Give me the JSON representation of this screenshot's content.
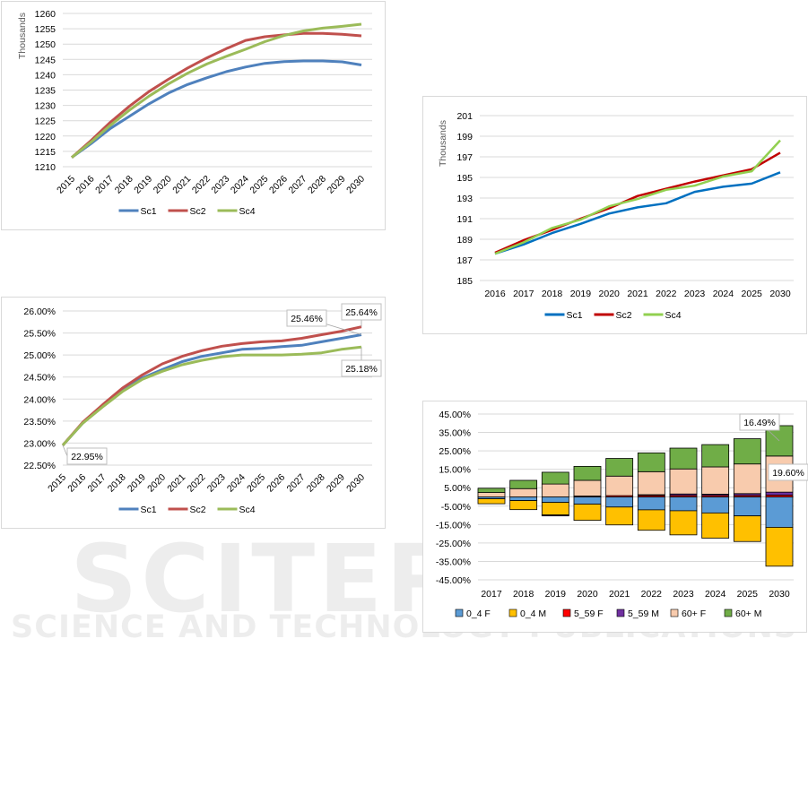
{
  "watermark": {
    "title": "SCITEPRESS",
    "subtitle": "SCIENCE AND TECHNOLOGY PUBLICATIONS"
  },
  "chart_data": [
    {
      "type": "line",
      "title": "",
      "ylabel": "Thousands",
      "xlabel": "",
      "ylim": [
        1210,
        1260
      ],
      "ytick_step": 5,
      "categories": [
        "2015",
        "2016",
        "2017",
        "2018",
        "2019",
        "2020",
        "2021",
        "2022",
        "2023",
        "2024",
        "2025",
        "2026",
        "2027",
        "2028",
        "2029",
        "2030"
      ],
      "legend": "bottom",
      "grid": true,
      "series": [
        {
          "name": "Sc1",
          "color": "#4f81bd",
          "values": [
            1213,
            1217.5,
            1222.5,
            1226.5,
            1230.5,
            1234,
            1236.8,
            1239,
            1241,
            1242.5,
            1243.7,
            1244.3,
            1244.5,
            1244.5,
            1244.2,
            1243.2
          ]
        },
        {
          "name": "Sc2",
          "color": "#c0504d",
          "values": [
            1213,
            1218.5,
            1224.5,
            1229.8,
            1234.5,
            1238.5,
            1242.2,
            1245.5,
            1248.5,
            1251.2,
            1252.4,
            1253,
            1253.5,
            1253.5,
            1253.2,
            1252.7
          ]
        },
        {
          "name": "Sc4",
          "color": "#9bbb59",
          "values": [
            1213,
            1218,
            1223.5,
            1228.5,
            1233,
            1237,
            1240.5,
            1243.5,
            1246,
            1248.3,
            1250.8,
            1252.8,
            1254.3,
            1255.2,
            1255.8,
            1256.5
          ]
        }
      ]
    },
    {
      "type": "line",
      "title": "",
      "ylabel": "",
      "xlabel": "",
      "ylim": [
        22.5,
        26.0
      ],
      "ytick_step": 0.5,
      "yformat": "percent2",
      "categories": [
        "2015",
        "2016",
        "2017",
        "2018",
        "2019",
        "2020",
        "2021",
        "2022",
        "2023",
        "2024",
        "2025",
        "2026",
        "2027",
        "2028",
        "2029",
        "2030"
      ],
      "legend": "bottom",
      "grid": true,
      "series": [
        {
          "name": "Sc1",
          "color": "#4f81bd",
          "values": [
            22.95,
            23.45,
            23.85,
            24.2,
            24.48,
            24.67,
            24.85,
            24.97,
            25.05,
            25.13,
            25.15,
            25.19,
            25.22,
            25.3,
            25.38,
            25.46
          ]
        },
        {
          "name": "Sc2",
          "color": "#c0504d",
          "values": [
            22.95,
            23.47,
            23.87,
            24.25,
            24.55,
            24.8,
            24.97,
            25.1,
            25.2,
            25.26,
            25.3,
            25.32,
            25.38,
            25.46,
            25.54,
            25.64
          ]
        },
        {
          "name": "Sc4",
          "color": "#9bbb59",
          "values": [
            22.95,
            23.45,
            23.82,
            24.17,
            24.45,
            24.63,
            24.78,
            24.88,
            24.96,
            25.0,
            25.0,
            25.0,
            25.02,
            25.05,
            25.13,
            25.18
          ]
        }
      ],
      "annotations": [
        {
          "text": "22.95%",
          "series": "Sc1",
          "category": "2015"
        },
        {
          "text": "25.46%",
          "series": "Sc1",
          "category": "2030"
        },
        {
          "text": "25.64%",
          "series": "Sc2",
          "category": "2030"
        },
        {
          "text": "25.18%",
          "series": "Sc4",
          "category": "2030"
        }
      ]
    },
    {
      "type": "line",
      "title": "",
      "ylabel": "Thousands",
      "xlabel": "",
      "ylim": [
        185,
        201
      ],
      "ytick_step": 2,
      "categories": [
        "2016",
        "2017",
        "2018",
        "2019",
        "2020",
        "2021",
        "2022",
        "2023",
        "2024",
        "2025",
        "2030"
      ],
      "legend": "bottom",
      "grid": true,
      "series": [
        {
          "name": "Sc1",
          "color": "#0070c0",
          "values": [
            187.6,
            188.5,
            189.6,
            190.5,
            191.5,
            192.1,
            192.5,
            193.6,
            194.1,
            194.4,
            195.5
          ]
        },
        {
          "name": "Sc2",
          "color": "#c00000",
          "values": [
            187.7,
            188.9,
            189.9,
            191.0,
            192.0,
            193.2,
            193.9,
            194.6,
            195.2,
            195.8,
            197.4
          ]
        },
        {
          "name": "Sc4",
          "color": "#92d050",
          "values": [
            187.6,
            188.7,
            190.1,
            190.9,
            192.2,
            192.9,
            193.8,
            194.2,
            195.1,
            195.6,
            198.6
          ]
        }
      ]
    },
    {
      "type": "bar",
      "stacked": true,
      "title": "",
      "ylabel": "",
      "xlabel": "",
      "ylim": [
        -45,
        45
      ],
      "yticks": [
        45,
        35,
        25,
        15,
        5,
        -5,
        -15,
        -25,
        -35,
        -45
      ],
      "yformat": "percent2",
      "categories": [
        "2017",
        "2018",
        "2019",
        "2020",
        "2021",
        "2022",
        "2023",
        "2024",
        "2025",
        "2030"
      ],
      "legend": "bottom",
      "grid": true,
      "series": [
        {
          "name": "0_4 F",
          "color": "#5b9bd5",
          "values": [
            -1.0,
            -2.0,
            -3.0,
            -3.9,
            -5.5,
            -7.0,
            -7.5,
            -8.7,
            -10.3,
            -16.5
          ]
        },
        {
          "name": "0_4 M",
          "color": "#ffc000",
          "values": [
            -2.7,
            -4.9,
            -6.8,
            -8.8,
            -9.7,
            -11.1,
            -13.1,
            -13.7,
            -13.9,
            -21.1
          ]
        },
        {
          "name": "5_59 F",
          "color": "#ff0000",
          "values": [
            0,
            0,
            0,
            0.5,
            0.7,
            0.8,
            0.8,
            0.8,
            0.8,
            1.0
          ]
        },
        {
          "name": "5_59 M",
          "color": "#7030a0",
          "values": [
            0,
            0,
            -0.5,
            0,
            0,
            0.4,
            0.8,
            0.7,
            1.0,
            1.6
          ]
        },
        {
          "name": "60+ F",
          "color": "#f8cbad",
          "values": [
            2.4,
            4.5,
            7.0,
            8.5,
            10.6,
            12.5,
            13.6,
            14.8,
            16.1,
            19.6
          ]
        },
        {
          "name": "60+ M",
          "color": "#70ad47",
          "values": [
            2.3,
            4.5,
            6.4,
            7.6,
            9.6,
            10.2,
            11.3,
            12.1,
            13.7,
            16.49
          ]
        }
      ],
      "annotations": [
        {
          "text": "16.49%",
          "series": "60+ M",
          "category": "2030"
        },
        {
          "text": "19.60%",
          "series": "60+ F",
          "category": "2030"
        }
      ]
    }
  ]
}
